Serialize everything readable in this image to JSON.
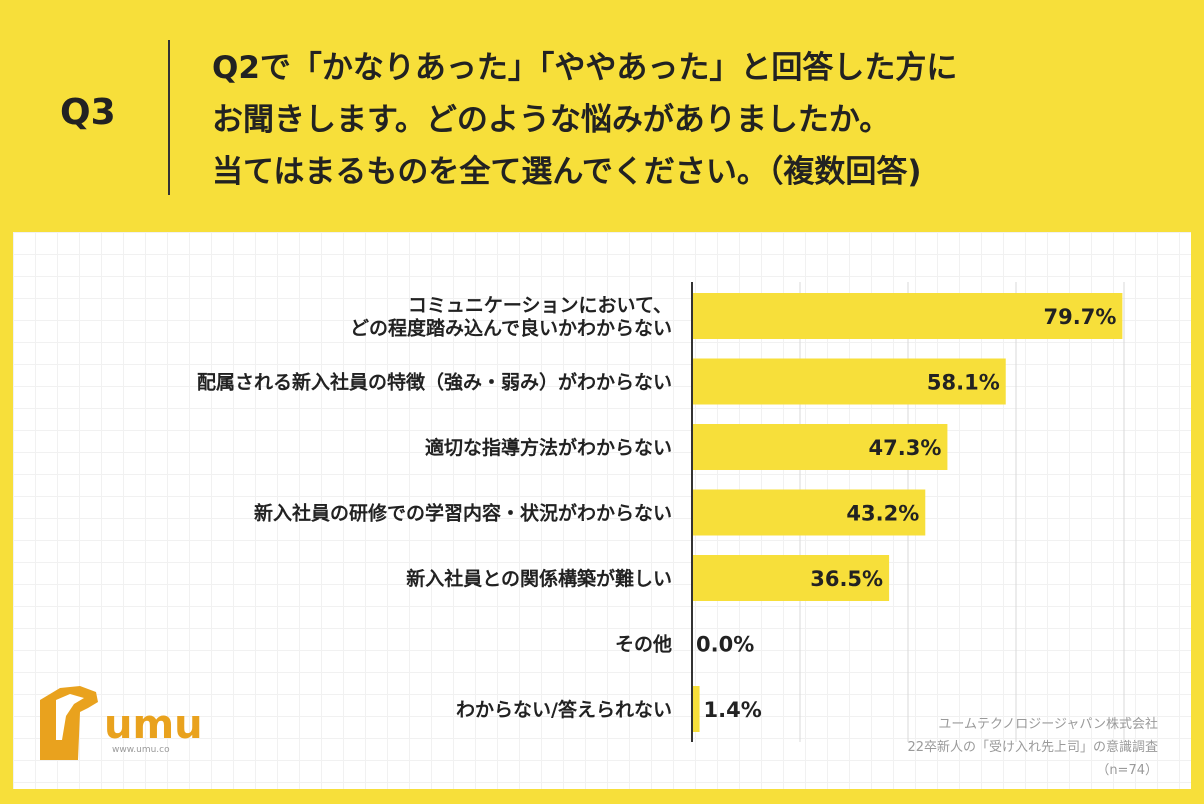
{
  "question": {
    "number": "Q3",
    "lines": [
      "Q2で「かなりあった」「ややあった」と回答した方に",
      "お聞きします。どのような悩みがありましたか。",
      "当てはまるものを全て選んでください。（複数回答)"
    ]
  },
  "logo": {
    "name": "umu",
    "url": "www.umu.co"
  },
  "source": {
    "company": "ユームテクノロジージャパン株式会社",
    "survey": "22卒新人の「受け入れ先上司」の意識調査",
    "n": "（n=74）"
  },
  "colors": {
    "background": "#F7DF3A",
    "bar": "#F7DF3A",
    "logo": "#E9A21E"
  },
  "chart_data": {
    "type": "bar",
    "orientation": "horizontal",
    "unit": "%",
    "xlim": [
      0,
      100
    ],
    "categories": [
      [
        "コミュニケーションにおいて、",
        "どの程度踏み込んで良いかわからない"
      ],
      [
        "配属される新入社員の特徴（強み・弱み）がわからない"
      ],
      [
        "適切な指導方法がわからない"
      ],
      [
        "新入社員の研修での学習内容・状況がわからない"
      ],
      [
        "新入社員との関係構築が難しい"
      ],
      [
        "その他"
      ],
      [
        "わからない/答えられない"
      ]
    ],
    "values": [
      79.7,
      58.1,
      47.3,
      43.2,
      36.5,
      0.0,
      1.4
    ],
    "value_labels": [
      "79.7%",
      "58.1%",
      "47.3%",
      "43.2%",
      "36.5%",
      "0.0%",
      "1.4%"
    ]
  }
}
